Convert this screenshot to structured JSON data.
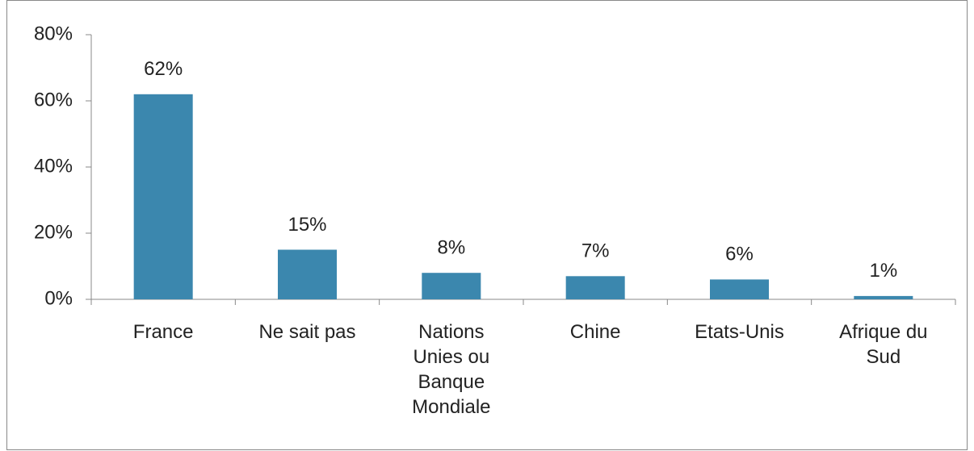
{
  "chart_data": {
    "type": "bar",
    "categories": [
      "France",
      "Ne sait pas",
      "Nations Unies ou Banque Mondiale",
      "Chine",
      "Etats-Unis",
      "Afrique du Sud"
    ],
    "values": [
      62,
      15,
      8,
      7,
      6,
      1
    ],
    "value_labels": [
      "62%",
      "15%",
      "8%",
      "7%",
      "6%",
      "1%"
    ],
    "color": "#3b87ae",
    "ylim": [
      0,
      80
    ],
    "yticks": [
      {
        "value": 0,
        "label": "0%"
      },
      {
        "value": 20,
        "label": "20%"
      },
      {
        "value": 40,
        "label": "40%"
      },
      {
        "value": 60,
        "label": "60%"
      },
      {
        "value": 80,
        "label": "80%"
      }
    ],
    "grid": false
  }
}
